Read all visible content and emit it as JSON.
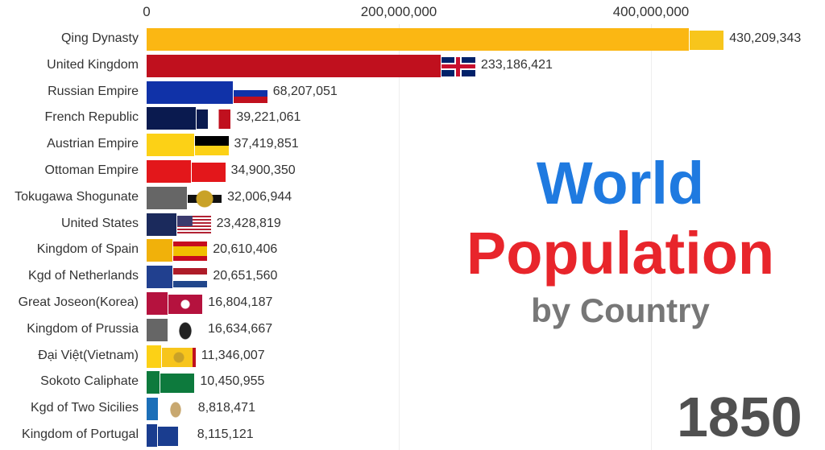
{
  "chart_data": {
    "type": "bar",
    "orientation": "horizontal",
    "title": "World Population by Country",
    "title_lines": [
      "World",
      "Population",
      "by Country"
    ],
    "year": "1850",
    "xlim": [
      0,
      430209343
    ],
    "x_ticks": [
      0,
      200000000,
      400000000
    ],
    "x_tick_labels": [
      "0",
      "200,000,000",
      "400,000,000"
    ],
    "grid": true,
    "categories": [
      "Qing Dynasty",
      "United Kingdom",
      "Russian Empire",
      "French Republic",
      "Austrian Empire",
      "Ottoman Empire",
      "Tokugawa Shogunate",
      "United States",
      "Kingdom of Spain",
      "Kgd of Netherlands",
      "Great Joseon(Korea)",
      "Kingdom of Prussia",
      "Đại Việt(Vietnam)",
      "Sokoto Caliphate",
      "Kgd of Two Sicilies",
      "Kingdom of Portugal"
    ],
    "values": [
      430209343,
      233186421,
      68207051,
      39221061,
      37419851,
      34900350,
      32006944,
      23428819,
      20610406,
      20651560,
      16804187,
      16634667,
      11346007,
      10450955,
      8818471,
      8115121
    ],
    "value_labels": [
      "430,209,343",
      "233,186,421",
      "68,207,051",
      "39,221,061",
      "37,419,851",
      "34,900,350",
      "32,006,944",
      "23,428,819",
      "20,610,406",
      "20,651,560",
      "16,804,187",
      "16,634,667",
      "11,346,007",
      "10,450,955",
      "8,818,471",
      "8,115,121"
    ],
    "bar_colors": [
      "#fbb713",
      "#c0101e",
      "#1032a8",
      "#0a1a4f",
      "#fcd116",
      "#e3171b",
      "#666666",
      "#1b2a5c",
      "#f1b10a",
      "#21408f",
      "#b5123e",
      "#666666",
      "#fcd116",
      "#0d7a3d",
      "#1c6fb8",
      "#1a3d8f"
    ],
    "flag_icons": [
      "qing-dragon-flag-icon",
      "union-jack-flag-icon",
      "russia-flag-icon",
      "france-flag-icon",
      "austria-flag-icon",
      "ottoman-flag-icon",
      "tokugawa-crest-icon",
      "us-flag-icon",
      "spain-flag-icon",
      "netherlands-flag-icon",
      "joseon-flag-icon",
      "prussia-eagle-icon",
      "vietnam-flag-icon",
      "sokoto-flag-icon",
      "two-sicilies-flag-icon",
      "portugal-flag-icon"
    ]
  }
}
